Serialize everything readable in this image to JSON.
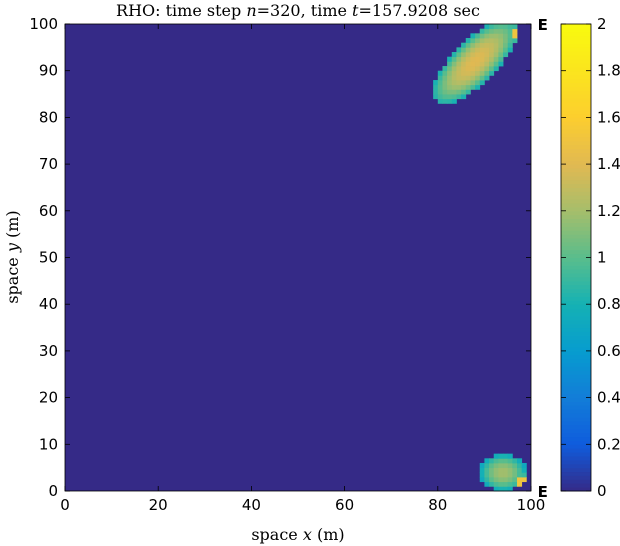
{
  "chart_data": {
    "type": "heatmap",
    "title": {
      "prefix": "RHO: time step ",
      "n_symbol": "n",
      "n_value": "=320",
      "mid": ", time ",
      "t_symbol": "t",
      "t_value": "=157.9208 sec"
    },
    "xlabel": {
      "prefix": "space ",
      "symbol": "x",
      "suffix": " (m)"
    },
    "ylabel": {
      "prefix": "space ",
      "symbol": "y",
      "suffix": " (m)"
    },
    "xlim": [
      0,
      100
    ],
    "ylim": [
      0,
      100
    ],
    "xticks": [
      "0",
      "20",
      "40",
      "60",
      "80",
      "100"
    ],
    "yticks": [
      "0",
      "10",
      "20",
      "30",
      "40",
      "50",
      "60",
      "70",
      "80",
      "90",
      "100"
    ],
    "colorbar": {
      "range": [
        0,
        2
      ],
      "ticks": [
        "0",
        "0.2",
        "0.4",
        "0.6",
        "0.8",
        "1",
        "1.2",
        "1.4",
        "1.6",
        "1.8",
        "2"
      ],
      "colormap": "parula"
    },
    "background_value": 0.0,
    "features": [
      {
        "name": "upper-right elongated pulse",
        "center": [
          88,
          92
        ],
        "semi_axes_along_diag": [
          12,
          4.5
        ],
        "peak": 1.4,
        "edge_peak": [
          97,
          98
        ],
        "edge_value": 1.7
      },
      {
        "name": "lower-right small pulse",
        "center": [
          94,
          4
        ],
        "semi_axes": [
          5,
          4
        ],
        "peak": 1.2,
        "edge_peak": [
          98,
          2
        ],
        "edge_value": 1.7
      }
    ],
    "annotations": [
      {
        "text": "E",
        "x": 101,
        "y": 100
      },
      {
        "text": "E",
        "x": 101,
        "y": 0
      }
    ],
    "grid": false
  }
}
